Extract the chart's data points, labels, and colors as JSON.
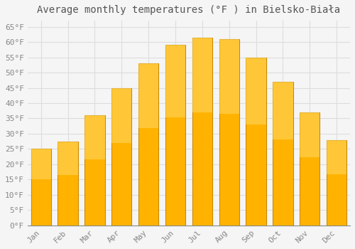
{
  "months": [
    "Jan",
    "Feb",
    "Mar",
    "Apr",
    "May",
    "Jun",
    "Jul",
    "Aug",
    "Sep",
    "Oct",
    "Nov",
    "Dec"
  ],
  "temperatures": [
    25,
    27.5,
    36,
    45,
    53,
    59,
    61.5,
    61,
    55,
    47,
    37,
    28
  ],
  "bar_color": "#FFB300",
  "bar_edge_color": "#CC8800",
  "bar_top_color": "#FFD966",
  "title": "Average monthly temperatures (°F ) in Bielsko-Biała",
  "ylim": [
    0,
    67
  ],
  "ytick_step": 5,
  "background_color": "#f5f5f5",
  "plot_bg_color": "#f5f5f5",
  "grid_color": "#dddddd",
  "title_fontsize": 10,
  "tick_fontsize": 8,
  "font_family": "monospace",
  "tick_color": "#888888",
  "bar_width": 0.75
}
